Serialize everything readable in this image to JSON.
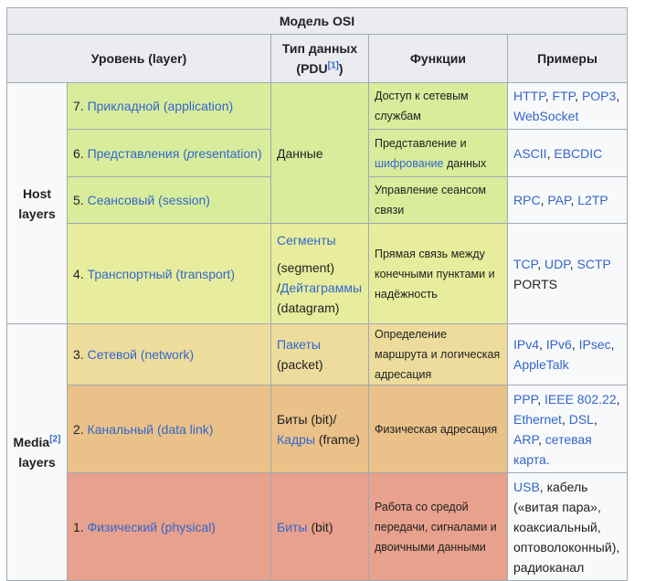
{
  "caption": "Модель OSI",
  "headers": {
    "level": "Уровень (layer)",
    "pdu_prefix": "Тип данных (PDU",
    "pdu_ref": "[1]",
    "pdu_suffix": ")",
    "functions": "Функции",
    "examples": "Примеры"
  },
  "groups": {
    "host": "Host layers",
    "media_text": "Media",
    "media_ref": "[2]",
    "media_suffix": "layers"
  },
  "layers": {
    "l7": {
      "num": "7. ",
      "name": "Прикладной (application)",
      "func": "Доступ к сетевым службам"
    },
    "l6": {
      "num": "6. ",
      "name_pre": "Представления (",
      "name_it": "p",
      "name_post": "resentation)",
      "func_pre": "Представление и",
      "func_link": "шифрование",
      "func_post": " данных"
    },
    "l5": {
      "num": "5. ",
      "name": "Сеансовый (session)",
      "func": "Управление сеансом связи"
    },
    "l4": {
      "num": "4. ",
      "name": "Транспортный (transport)",
      "func": "Прямая связь между конечными пунктами и надёжность"
    },
    "l3": {
      "num": "3. ",
      "name": "Сетевой (network)",
      "func": "Определение маршрута и логическая адресация"
    },
    "l2": {
      "num": "2. ",
      "name": "Канальный (data link)",
      "func": "Физическая адресация"
    },
    "l1": {
      "num": "1. ",
      "name": "Физический (physical)",
      "func": "Работа со средой передачи, сигналами и двоичными данными"
    }
  },
  "pdu": {
    "host_data": "Данные",
    "segments": "Сегменты",
    "segment_en": "(segment)",
    "datagrams_prefix": "/",
    "datagrams": "Дейтаграммы",
    "datagram_en": "(datagram)",
    "packets": "Пакеты",
    "packet_en": "(packet)",
    "bits_link_pre": "Биты (bit)/",
    "frames": "Кадры",
    "frame_en": " (frame)",
    "bits": "Биты",
    "bit_en": " (bit)"
  },
  "examples": {
    "l7": [
      "HTTP",
      "FTP",
      "POP3",
      "WebSocket"
    ],
    "l6": [
      "ASCII",
      "EBCDIC"
    ],
    "l5": [
      "RPC",
      "PAP",
      "L2TP"
    ],
    "l4": [
      "TCP",
      "UDP",
      "SCTP"
    ],
    "l4_plain": "PORTS",
    "l3": [
      "IPv4",
      "IPv6",
      "IPsec",
      "AppleTalk"
    ],
    "l2": [
      "PPP",
      "IEEE 802.22",
      "Ethernet",
      "DSL",
      "ARP",
      "сетевая карта."
    ],
    "l1_link": "USB",
    "l1_text": ", кабель («витая пара», коаксиальный, оптоволоконный), радиоканал"
  },
  "separator": ", "
}
